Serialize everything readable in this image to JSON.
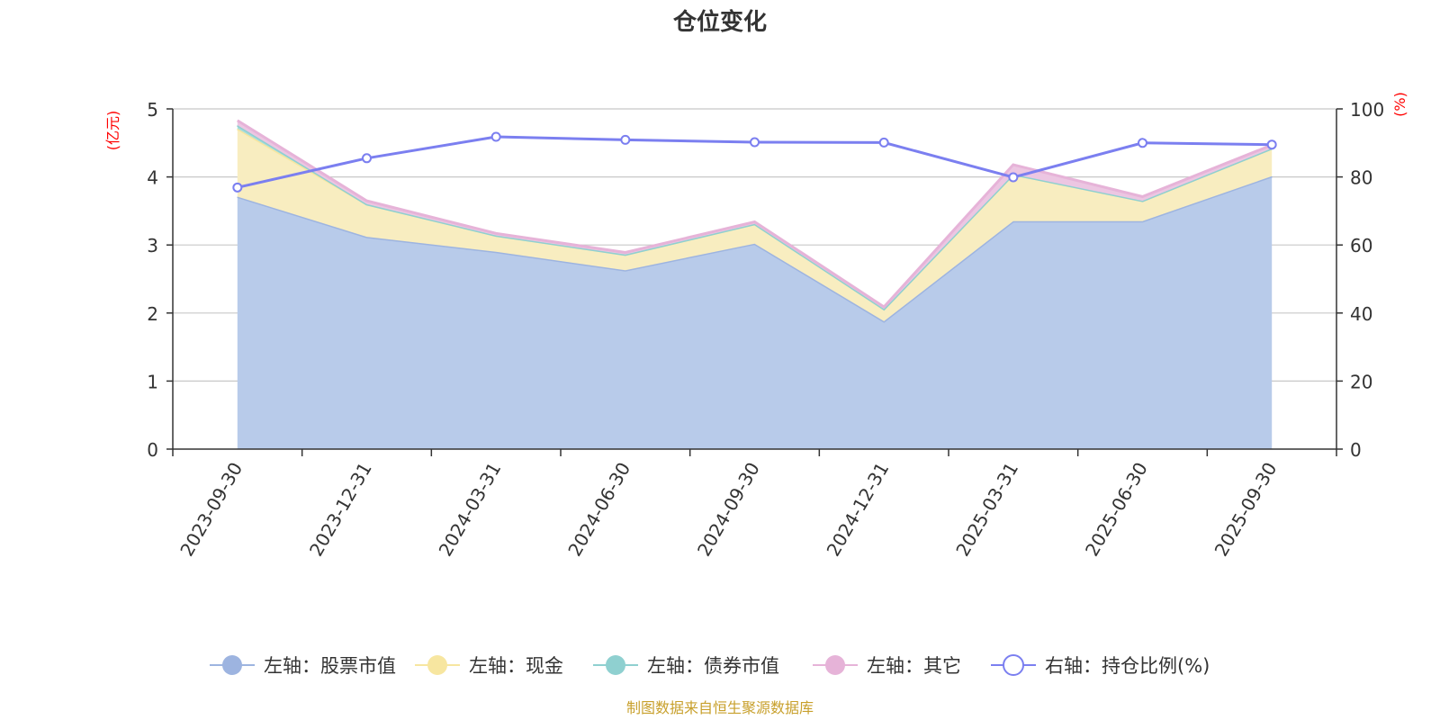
{
  "chart_data": {
    "type": "area",
    "title": "仓位变化",
    "left_axis": {
      "unit_label": "(亿元)",
      "ylim": [
        0,
        5
      ],
      "ticks": [
        "0",
        "1",
        "2",
        "3",
        "4",
        "5"
      ]
    },
    "right_axis": {
      "unit_label": "(%)",
      "ylim": [
        0,
        100
      ],
      "ticks": [
        "0",
        "20",
        "40",
        "60",
        "80",
        "100"
      ]
    },
    "categories": [
      "2023-09-30",
      "2023-12-31",
      "2024-03-31",
      "2024-06-30",
      "2024-09-30",
      "2024-12-31",
      "2025-03-31",
      "2025-06-30",
      "2025-09-30"
    ],
    "series": [
      {
        "name": "左轴：股票市值",
        "axis": "left",
        "kind": "stacked-area",
        "color": "#9db4e0",
        "fill": "#b8cbea",
        "values": [
          3.71,
          3.12,
          2.9,
          2.63,
          3.02,
          1.88,
          3.35,
          3.35,
          4.01
        ]
      },
      {
        "name": "左轴：现金",
        "axis": "left",
        "kind": "stacked-area",
        "color": "#f7e6a0",
        "fill": "#f8edc0",
        "values": [
          1.0,
          0.48,
          0.24,
          0.23,
          0.29,
          0.18,
          0.69,
          0.3,
          0.41
        ]
      },
      {
        "name": "左轴：债券市值",
        "axis": "left",
        "kind": "stacked-area",
        "color": "#8fd0d0",
        "fill": "#a8dcdc",
        "values": [
          0.05,
          0.0,
          0.0,
          0.0,
          0.0,
          0.0,
          0.0,
          0.0,
          0.0
        ]
      },
      {
        "name": "左轴：其它",
        "axis": "left",
        "kind": "stacked-area",
        "color": "#e6b3d8",
        "fill": "#ecc6e2",
        "values": [
          0.07,
          0.05,
          0.03,
          0.03,
          0.03,
          0.03,
          0.14,
          0.06,
          0.05
        ]
      },
      {
        "name": "右轴：持仓比例(%)",
        "axis": "right",
        "kind": "line",
        "color": "#7b7ff0",
        "fill": "#ffffff",
        "values": [
          76.9,
          85.5,
          91.8,
          90.9,
          90.2,
          90.1,
          79.9,
          90.0,
          89.5
        ]
      }
    ]
  },
  "footer": "制图数据来自恒生聚源数据库"
}
